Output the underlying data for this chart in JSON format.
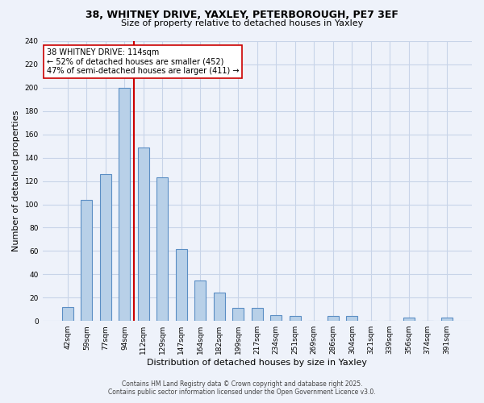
{
  "title_line1": "38, WHITNEY DRIVE, YAXLEY, PETERBOROUGH, PE7 3EF",
  "title_line2": "Size of property relative to detached houses in Yaxley",
  "xlabel": "Distribution of detached houses by size in Yaxley",
  "ylabel": "Number of detached properties",
  "bar_labels": [
    "42sqm",
    "59sqm",
    "77sqm",
    "94sqm",
    "112sqm",
    "129sqm",
    "147sqm",
    "164sqm",
    "182sqm",
    "199sqm",
    "217sqm",
    "234sqm",
    "251sqm",
    "269sqm",
    "286sqm",
    "304sqm",
    "321sqm",
    "339sqm",
    "356sqm",
    "374sqm",
    "391sqm"
  ],
  "bar_heights": [
    12,
    104,
    126,
    200,
    149,
    123,
    62,
    35,
    24,
    11,
    11,
    5,
    4,
    0,
    4,
    4,
    0,
    0,
    3,
    0,
    3
  ],
  "bar_color": "#b8d0e8",
  "bar_edge_color": "#5b8ec4",
  "bar_width": 0.6,
  "vline_color": "#cc0000",
  "vline_position": 3.5,
  "ylim": [
    0,
    240
  ],
  "yticks": [
    0,
    20,
    40,
    60,
    80,
    100,
    120,
    140,
    160,
    180,
    200,
    220,
    240
  ],
  "annotation_lines": [
    "38 WHITNEY DRIVE: 114sqm",
    "← 52% of detached houses are smaller (452)",
    "47% of semi-detached houses are larger (411) →"
  ],
  "annotation_box_color": "#ffffff",
  "annotation_box_edge": "#cc0000",
  "footer_line1": "Contains HM Land Registry data © Crown copyright and database right 2025.",
  "footer_line2": "Contains public sector information licensed under the Open Government Licence v3.0.",
  "background_color": "#eef2fa",
  "grid_color": "#c8d4e8",
  "title_fontsize": 9,
  "subtitle_fontsize": 8,
  "xlabel_fontsize": 8,
  "ylabel_fontsize": 8,
  "tick_fontsize": 6.5,
  "annot_fontsize": 7,
  "footer_fontsize": 5.5
}
